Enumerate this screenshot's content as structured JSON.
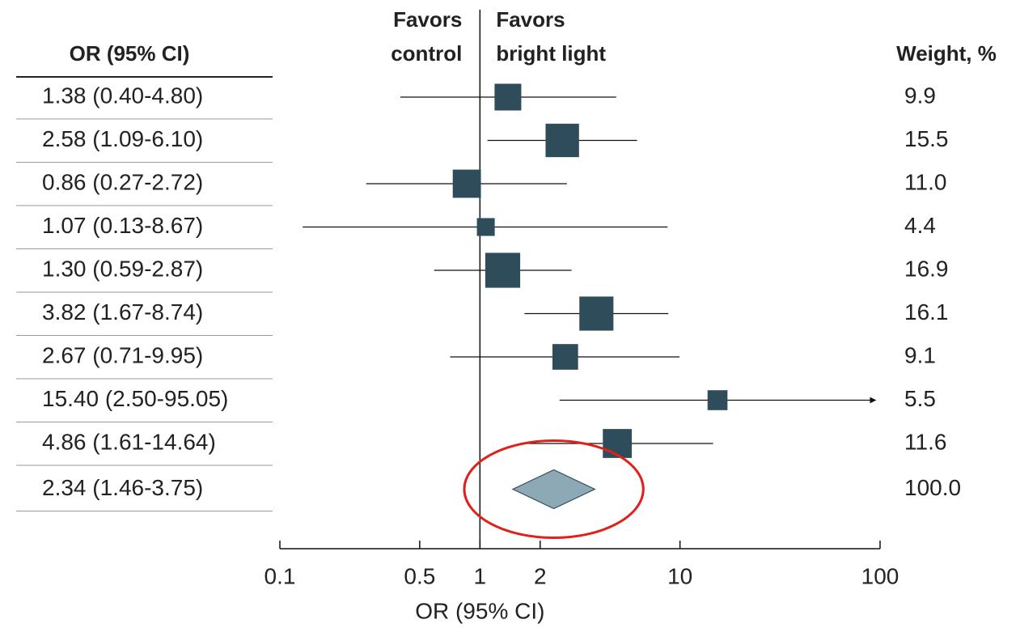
{
  "chart_data": {
    "type": "forest",
    "ci_header": "OR (95% CI)",
    "weight_header": "Weight, %",
    "favors_left": [
      "Favors",
      "control"
    ],
    "favors_right": [
      "Favors",
      "bright light"
    ],
    "x_label": "OR (95% CI)",
    "x_log": true,
    "xlim": [
      0.1,
      100
    ],
    "xticks": [
      0.1,
      0.5,
      1,
      2,
      10,
      100
    ],
    "reference": 1,
    "color": "#2f4c5a",
    "studies": {
      "ci_labels": [
        "1.38 (0.40-4.80)",
        "2.58 (1.09-6.10)",
        "0.86 (0.27-2.72)",
        "1.07 (0.13-8.67)",
        "1.30 (0.59-2.87)",
        "3.82 (1.67-8.74)",
        "2.67 (0.71-9.95)",
        "15.40 (2.50-95.05)",
        "4.86 (1.61-14.64)"
      ],
      "or": [
        1.38,
        2.58,
        0.86,
        1.07,
        1.3,
        3.82,
        2.67,
        15.4,
        4.86
      ],
      "lower": [
        0.4,
        1.09,
        0.27,
        0.13,
        0.59,
        1.67,
        0.71,
        2.5,
        1.61
      ],
      "upper": [
        4.8,
        6.1,
        2.72,
        8.67,
        2.87,
        8.74,
        9.95,
        95.05,
        14.64
      ],
      "weights": [
        9.9,
        15.5,
        11,
        4.4,
        16.9,
        16.1,
        9.1,
        5.5,
        11.6
      ],
      "weight_labels": [
        "9.9",
        "15.5",
        "11.0",
        "4.4",
        "16.9",
        "16.1",
        "9.1",
        "5.5",
        "11.6"
      ]
    },
    "summary": {
      "ci_label": "2.34 (1.46-3.75)",
      "or": 2.34,
      "lower": 1.46,
      "upper": 3.75,
      "weight": 100,
      "weight_label": "100.0",
      "color": "#8ea9b6",
      "highlight_color": "#e0201b"
    }
  }
}
